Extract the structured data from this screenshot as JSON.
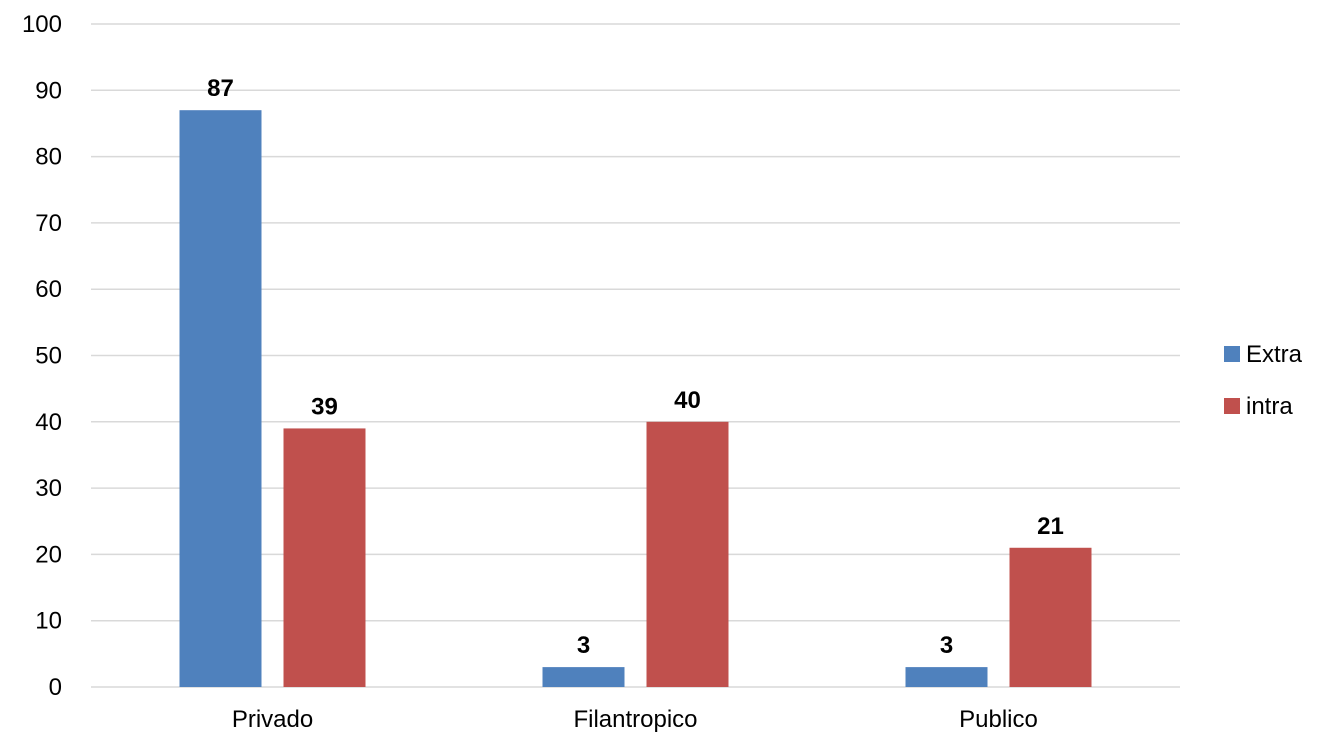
{
  "chart_data": {
    "type": "bar",
    "categories": [
      "Privado",
      "Filantropico",
      "Publico"
    ],
    "series": [
      {
        "name": "Extra",
        "values": [
          87,
          3,
          3
        ],
        "color": "#4F81BD"
      },
      {
        "name": "intra",
        "values": [
          39,
          40,
          21
        ],
        "color": "#C0504D"
      }
    ],
    "title": "",
    "xlabel": "",
    "ylabel": "",
    "ylim": [
      0,
      100
    ],
    "yticks": [
      0,
      10,
      20,
      30,
      40,
      50,
      60,
      70,
      80,
      90,
      100
    ],
    "grid": true,
    "legend": "right",
    "gridline_color": "#D9D9D9",
    "axis_color": "#D9D9D9"
  }
}
